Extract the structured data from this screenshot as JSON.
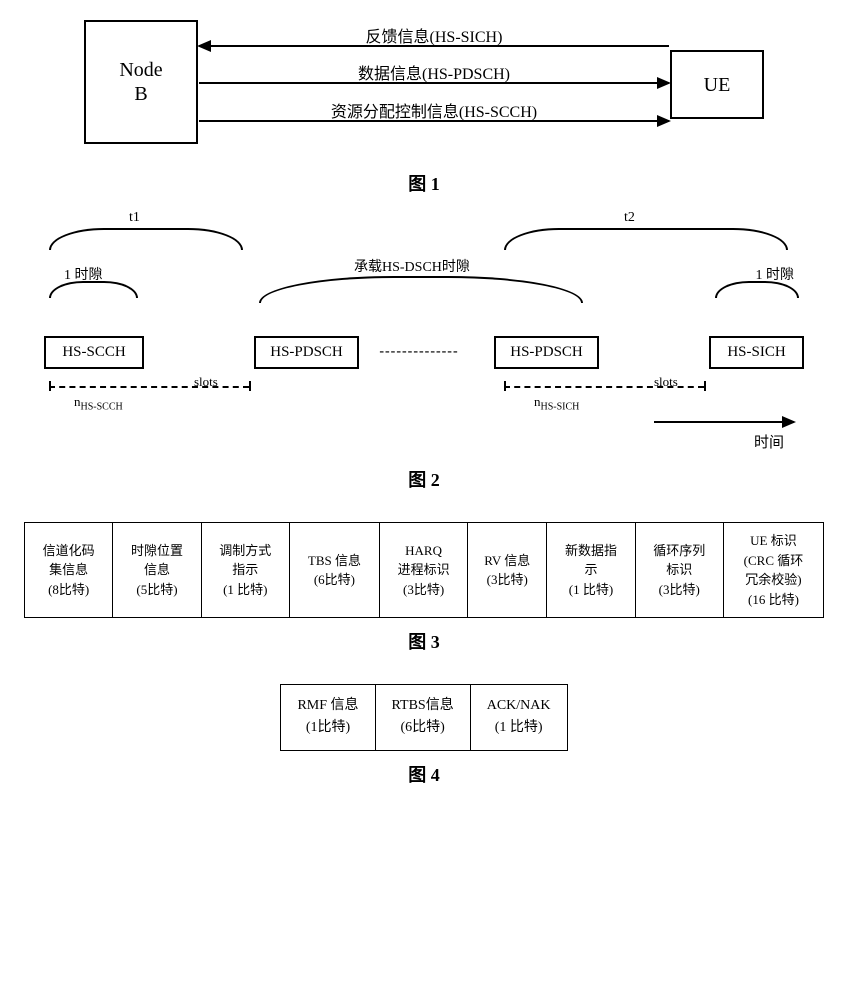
{
  "fig1": {
    "nodeB": "Node\nB",
    "ue": "UE",
    "arrows": [
      {
        "label": "反馈信息(HS-SICH)",
        "dir": "left"
      },
      {
        "label": "数据信息(HS-PDSCH)",
        "dir": "right"
      },
      {
        "label": "资源分配控制信息(HS-SCCH)",
        "dir": "right"
      }
    ],
    "caption": "图 1"
  },
  "fig2": {
    "t1": "t1",
    "t2": "t2",
    "slot1_label": "1 时隙",
    "carry_label": "承载HS-DSCH时隙",
    "slot2_label": "1 时隙",
    "boxes": [
      "HS-SCCH",
      "HS-PDSCH",
      "HS-PDSCH",
      "HS-SICH"
    ],
    "dots": "--------------",
    "n1_label": "n",
    "n1_sub": "HS-SCCH",
    "slots_text": "slots",
    "n2_label": "n",
    "n2_sub": "HS-SICH",
    "time_label": "时间",
    "caption": "图 2"
  },
  "fig3": {
    "cells": [
      {
        "l1": "信道化码",
        "l2": "集信息",
        "l3": "(8比特)"
      },
      {
        "l1": "时隙位置",
        "l2": "信息",
        "l3": "(5比特)"
      },
      {
        "l1": "调制方式",
        "l2": "指示",
        "l3": "(1 比特)"
      },
      {
        "l1": "TBS 信息",
        "l2": "",
        "l3": "(6比特)"
      },
      {
        "l1": "HARQ",
        "l2": "进程标识",
        "l3": "(3比特)"
      },
      {
        "l1": "RV 信息",
        "l2": "",
        "l3": "(3比特)"
      },
      {
        "l1": "新数据指",
        "l2": "示",
        "l3": "(1 比特)"
      },
      {
        "l1": "循环序列",
        "l2": "标识",
        "l3": "(3比特)"
      },
      {
        "l1": "UE 标识",
        "l2": "(CRC 循环\n冗余校验)",
        "l3": "(16 比特)"
      }
    ],
    "caption": "图 3"
  },
  "fig4": {
    "cells": [
      {
        "l1": "RMF 信息",
        "l2": "(1比特)"
      },
      {
        "l1": "RTBS信息",
        "l2": "(6比特)"
      },
      {
        "l1": "ACK/NAK",
        "l2": "(1 比特)"
      }
    ],
    "caption": "图 4"
  },
  "colors": {
    "line": "#000000",
    "bg": "#ffffff"
  }
}
